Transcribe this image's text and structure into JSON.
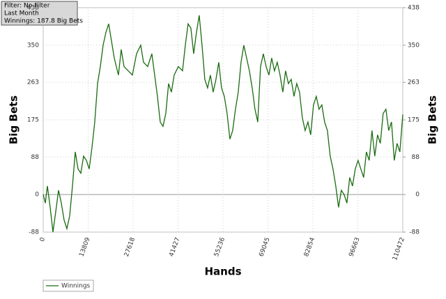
{
  "chart_data": {
    "type": "line",
    "annotations": [
      "Filter: No Filter",
      "Last Month",
      "Winnings: 187.8 Big Bets"
    ],
    "x_label": "Hands",
    "y_label": "Big Bets",
    "y2_label": "Big Bets",
    "xlim": [
      0,
      110472
    ],
    "xticks": [
      0,
      13809,
      27618,
      41427,
      55236,
      69045,
      82854,
      96663,
      110472
    ],
    "ylim": [
      -88,
      438
    ],
    "yticks": [
      -88,
      0,
      88,
      175,
      263,
      350,
      438
    ],
    "y2lim": [
      -88,
      438
    ],
    "y2ticks": [
      -88,
      0,
      88,
      175,
      263,
      350,
      438
    ],
    "grid": true,
    "legend": "bottom-left",
    "series": [
      {
        "name": "Winnings",
        "color": "#1a6b10",
        "x": [
          0,
          642,
          1284,
          2140,
          2996,
          3852,
          4708,
          5564,
          6420,
          7276,
          8132,
          8988,
          9844,
          10700,
          11556,
          12412,
          13268,
          14124,
          14980,
          15836,
          16692,
          17548,
          18404,
          19260,
          20116,
          20972,
          21828,
          23112,
          23968,
          24824,
          26108,
          27392,
          28676,
          29960,
          30816,
          32100,
          33384,
          34240,
          35096,
          35952,
          36808,
          37664,
          38520,
          39376,
          40232,
          41516,
          42800,
          43656,
          44512,
          45368,
          46224,
          47080,
          47936,
          48792,
          49648,
          50504,
          51360,
          52216,
          53072,
          53928,
          54784,
          55640,
          56496,
          57352,
          58208,
          59064,
          59920,
          60776,
          61632,
          62488,
          63344,
          64200,
          65056,
          65912,
          66768,
          67624,
          68480,
          69336,
          70192,
          71048,
          71904,
          72760,
          73616,
          74472,
          75328,
          76184,
          77040,
          77896,
          78752,
          79608,
          80464,
          81320,
          82176,
          83032,
          83888,
          84744,
          85600,
          86456,
          87312,
          88168,
          89024,
          89880,
          90736,
          91592,
          92448,
          93304,
          94160,
          95016,
          95872,
          96728,
          97584,
          98440,
          99296,
          100152,
          101008,
          101864,
          102720,
          103576,
          104432,
          105288,
          106144,
          107000,
          107856,
          108712,
          109568,
          110472
        ],
        "values": [
          0,
          -20,
          20,
          -30,
          -88,
          -40,
          10,
          -20,
          -60,
          -80,
          -50,
          20,
          100,
          60,
          50,
          90,
          80,
          60,
          110,
          170,
          260,
          300,
          350,
          380,
          400,
          360,
          320,
          280,
          340,
          300,
          290,
          280,
          330,
          350,
          310,
          300,
          330,
          280,
          230,
          170,
          160,
          190,
          260,
          240,
          280,
          300,
          290,
          350,
          400,
          390,
          330,
          380,
          420,
          350,
          270,
          250,
          280,
          240,
          270,
          310,
          250,
          230,
          190,
          130,
          150,
          200,
          240,
          310,
          350,
          320,
          290,
          250,
          200,
          170,
          300,
          330,
          300,
          280,
          320,
          290,
          310,
          280,
          240,
          290,
          260,
          270,
          230,
          260,
          240,
          180,
          150,
          170,
          140,
          210,
          230,
          200,
          210,
          170,
          150,
          90,
          60,
          20,
          -30,
          10,
          0,
          -20,
          40,
          20,
          60,
          80,
          60,
          40,
          100,
          80,
          150,
          90,
          140,
          120,
          190,
          200,
          150,
          170,
          80,
          120,
          100,
          187.8
        ]
      }
    ]
  }
}
